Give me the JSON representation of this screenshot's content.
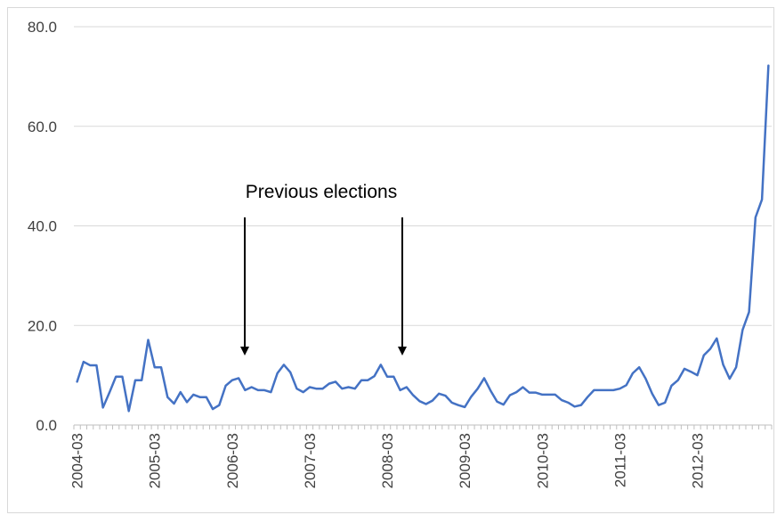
{
  "chart_data": {
    "type": "line",
    "ylim": [
      0,
      80
    ],
    "ytick_values": [
      0,
      20,
      40,
      60,
      80
    ],
    "ytick_labels": [
      "0.0",
      "20.0",
      "40.0",
      "60.0",
      "80.0"
    ],
    "xtick_labels": [
      "2004-03",
      "2005-03",
      "2006-03",
      "2007-03",
      "2008-03",
      "2009-03",
      "2010-03",
      "2011-03",
      "2012-03"
    ],
    "grid": true,
    "x_start": "2004-03",
    "series": [
      {
        "color": "#4472c4",
        "values": [
          8.7,
          12.7,
          12.0,
          12.0,
          3.5,
          6.5,
          9.7,
          9.7,
          2.8,
          9.0,
          9.0,
          17.1,
          11.6,
          11.6,
          5.6,
          4.3,
          6.6,
          4.6,
          6.1,
          5.6,
          5.6,
          3.2,
          4.0,
          7.9,
          9.0,
          9.4,
          7.0,
          7.6,
          7.0,
          7.0,
          6.6,
          10.4,
          12.1,
          10.6,
          7.3,
          6.6,
          7.6,
          7.3,
          7.3,
          8.3,
          8.7,
          7.3,
          7.6,
          7.3,
          9.0,
          9.0,
          9.8,
          12.1,
          9.7,
          9.7,
          7.0,
          7.6,
          6.0,
          4.8,
          4.2,
          4.9,
          6.3,
          5.9,
          4.5,
          4.0,
          3.6,
          5.7,
          7.3,
          9.4,
          6.9,
          4.7,
          4.1,
          6.0,
          6.6,
          7.6,
          6.5,
          6.5,
          6.1,
          6.1,
          6.1,
          5.0,
          4.5,
          3.7,
          4.0,
          5.6,
          7.0,
          7.0,
          7.0,
          7.0,
          7.3,
          8.0,
          10.4,
          11.6,
          9.3,
          6.3,
          4.0,
          4.5,
          7.9,
          9.0,
          11.3,
          10.7,
          10.0,
          14.0,
          15.3,
          17.4,
          12.1,
          9.3,
          11.6,
          19.1,
          22.7,
          41.7,
          45.3,
          72.2
        ]
      }
    ],
    "annotation": {
      "text": "Previous elections",
      "arrow_targets": [
        "2006-06",
        "2008-06"
      ]
    }
  }
}
